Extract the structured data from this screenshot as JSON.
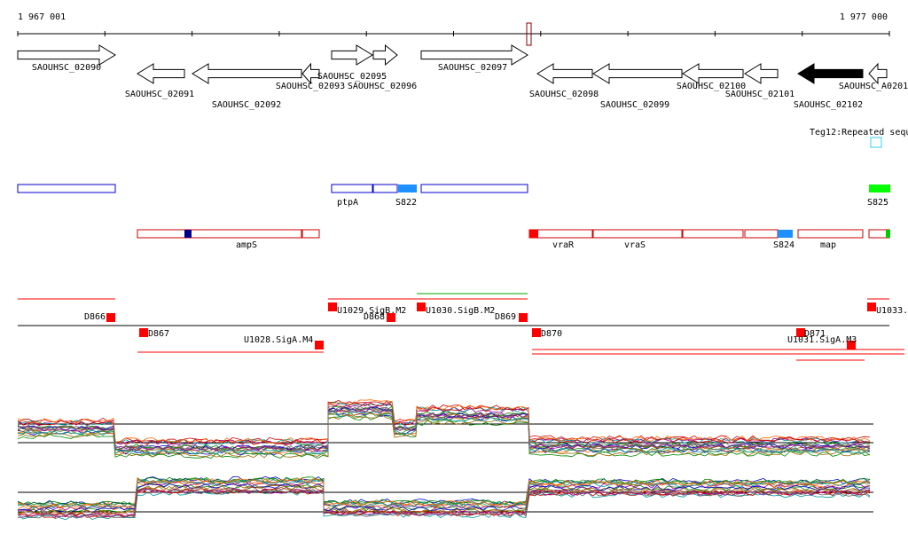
{
  "axis": {
    "start": "1 967 001",
    "end": "1 977 000"
  },
  "genes": [
    "SAOUHSC_02090",
    "SAOUHSC_02091",
    "SAOUHSC_02092",
    "SAOUHSC_02093",
    "SAOUHSC_02095",
    "SAOUHSC_02096",
    "SAOUHSC_02097",
    "SAOUHSC_02098",
    "SAOUHSC_02099",
    "SAOUHSC_02100",
    "SAOUHSC_02101",
    "SAOUHSC_02102",
    "SAOUHSC_A0201"
  ],
  "repeat": "Teg12:Repeated sequ",
  "features_top": [
    "ptpA",
    "S822",
    "S825"
  ],
  "features_mid": [
    "ampS",
    "vraR",
    "vraS",
    "S824",
    "map"
  ],
  "transcripts": [
    "D866",
    "D867",
    "U1028.SigA.M4",
    "U1029.SigB.M2",
    "D868",
    "U1030.SigB.M2",
    "D869",
    "D870",
    "D871",
    "U1031.SigA.M3",
    "U1033."
  ]
}
